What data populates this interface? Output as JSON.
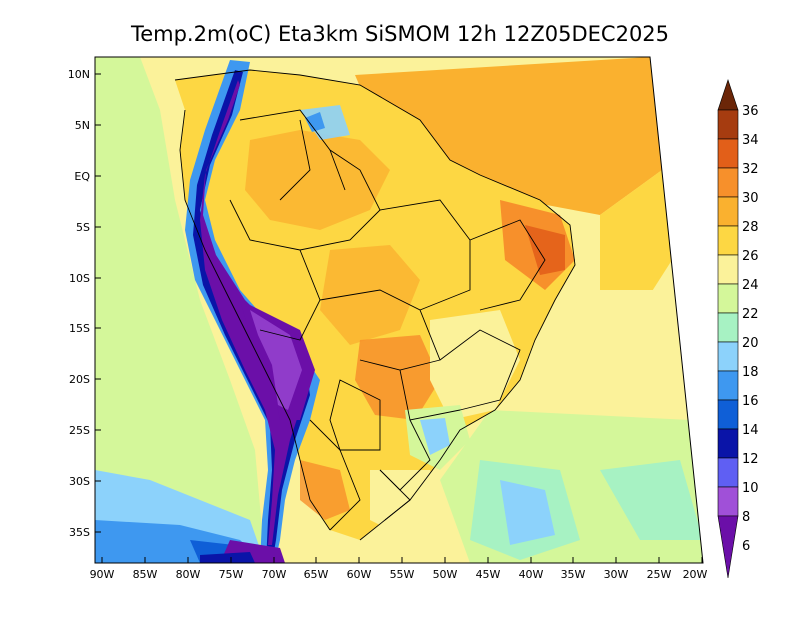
{
  "title": "Temp.2m(oC) Eta3km SiSMOM 12h 12Z05DEC2025",
  "map": {
    "lat_labels": [
      "10N",
      "5N",
      "EQ",
      "5S",
      "10S",
      "15S",
      "20S",
      "25S",
      "30S",
      "35S"
    ],
    "lon_labels": [
      "90W",
      "85W",
      "80W",
      "75W",
      "70W",
      "65W",
      "60W",
      "55W",
      "50W",
      "45W",
      "40W",
      "35W",
      "30W",
      "25W",
      "20W"
    ]
  },
  "colorbar": {
    "labels": [
      "36",
      "34",
      "32",
      "30",
      "28",
      "26",
      "24",
      "22",
      "20",
      "18",
      "16",
      "14",
      "12",
      "10",
      "8",
      "6"
    ],
    "colors": {
      "c36": "#6b2608",
      "c34": "#a63c10",
      "c32": "#e25f19",
      "c30": "#f7902b",
      "c28": "#fab12f",
      "c26": "#fdd743",
      "c24": "#fbf29a",
      "c22": "#d4f79a",
      "c20": "#a7f2c3",
      "c18": "#8cd2fb",
      "c16": "#3e98f0",
      "c14": "#0f5fd7",
      "c12": "#0a14a8",
      "c10": "#5f5ff3",
      "c8": "#a050d8",
      "c6": "#6b0fa8"
    }
  }
}
